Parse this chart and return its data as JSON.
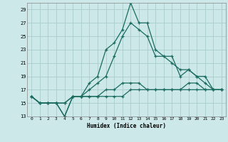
{
  "xlabel": "Humidex (Indice chaleur)",
  "background_color": "#cce8e8",
  "grid_color": "#aacccc",
  "line_color": "#1a6b60",
  "x": [
    0,
    1,
    2,
    3,
    4,
    5,
    6,
    7,
    8,
    9,
    10,
    11,
    12,
    13,
    14,
    15,
    16,
    17,
    18,
    19,
    20,
    21,
    22,
    23
  ],
  "line1": [
    16,
    15,
    15,
    15,
    13,
    16,
    16,
    18,
    19,
    23,
    24,
    26,
    30,
    27,
    27,
    23,
    22,
    21,
    20,
    20,
    19,
    19,
    17,
    17
  ],
  "line2": [
    16,
    15,
    15,
    15,
    13,
    16,
    16,
    17,
    18,
    19,
    22,
    25,
    27,
    26,
    25,
    22,
    22,
    22,
    19,
    20,
    19,
    18,
    17,
    17
  ],
  "line3": [
    16,
    15,
    15,
    15,
    15,
    16,
    16,
    16,
    16,
    17,
    17,
    18,
    18,
    18,
    17,
    17,
    17,
    17,
    17,
    18,
    18,
    17,
    17,
    17
  ],
  "line4": [
    16,
    15,
    15,
    15,
    15,
    16,
    16,
    16,
    16,
    16,
    16,
    16,
    17,
    17,
    17,
    17,
    17,
    17,
    17,
    17,
    17,
    17,
    17,
    17
  ],
  "ylim": [
    13,
    30
  ],
  "yticks": [
    13,
    15,
    17,
    19,
    21,
    23,
    25,
    27,
    29
  ],
  "xlim": [
    -0.5,
    23.5
  ],
  "xticks": [
    0,
    1,
    2,
    3,
    4,
    5,
    6,
    7,
    8,
    9,
    10,
    11,
    12,
    13,
    14,
    15,
    16,
    17,
    18,
    19,
    20,
    21,
    22,
    23
  ]
}
